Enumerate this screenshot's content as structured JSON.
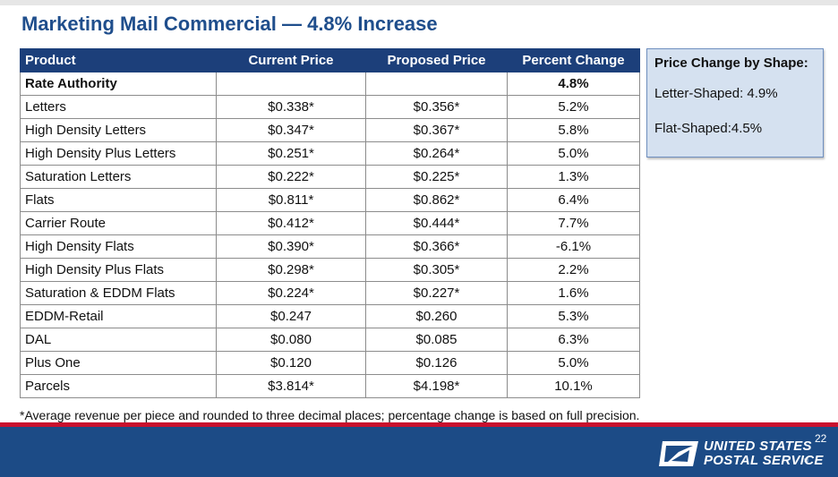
{
  "title": "Marketing Mail Commercial — 4.8% Increase",
  "table": {
    "headers": [
      "Product",
      "Current  Price",
      "Proposed Price",
      "Percent Change"
    ],
    "rows": [
      [
        "Rate Authority",
        "",
        "",
        "4.8%"
      ],
      [
        "Letters",
        "$0.338*",
        "$0.356*",
        "5.2%"
      ],
      [
        "High Density Letters",
        "$0.347*",
        "$0.367*",
        "5.8%"
      ],
      [
        "High Density Plus Letters",
        "$0.251*",
        "$0.264*",
        "5.0%"
      ],
      [
        "Saturation Letters",
        "$0.222*",
        "$0.225*",
        "1.3%"
      ],
      [
        "Flats",
        "$0.811*",
        "$0.862*",
        "6.4%"
      ],
      [
        "Carrier Route",
        "$0.412*",
        "$0.444*",
        "7.7%"
      ],
      [
        "High Density Flats",
        "$0.390*",
        "$0.366*",
        "-6.1%"
      ],
      [
        "High Density Plus Flats",
        "$0.298*",
        "$0.305*",
        "2.2%"
      ],
      [
        "Saturation & EDDM Flats",
        "$0.224*",
        "$0.227*",
        "1.6%"
      ],
      [
        "EDDM-Retail",
        "$0.247",
        "$0.260",
        "5.3%"
      ],
      [
        "DAL",
        "$0.080",
        "$0.085",
        "6.3%"
      ],
      [
        "Plus One",
        "$0.120",
        "$0.126",
        "5.0%"
      ],
      [
        "Parcels",
        "$3.814*",
        "$4.198*",
        "10.1%"
      ]
    ]
  },
  "footnote": "*Average revenue per piece and rounded to three decimal places; percentage change is based on full precision.",
  "shape_box": {
    "heading": "Price Change by Shape:",
    "letter": "Letter-Shaped: 4.9%",
    "flat": "Flat-Shaped:4.5%"
  },
  "footer": {
    "brand_line1": "UNITED STATES",
    "brand_line2": "POSTAL SERVICE",
    "registered": "®",
    "page_number": "22",
    "logo_icon": "eagle-logo-icon"
  },
  "colors": {
    "title": "#1f4e8c",
    "header_bg": "#1c3f7a",
    "footer_bg": "#1c4b86",
    "accent_red": "#c8102e",
    "box_bg": "#d5e1f0"
  }
}
